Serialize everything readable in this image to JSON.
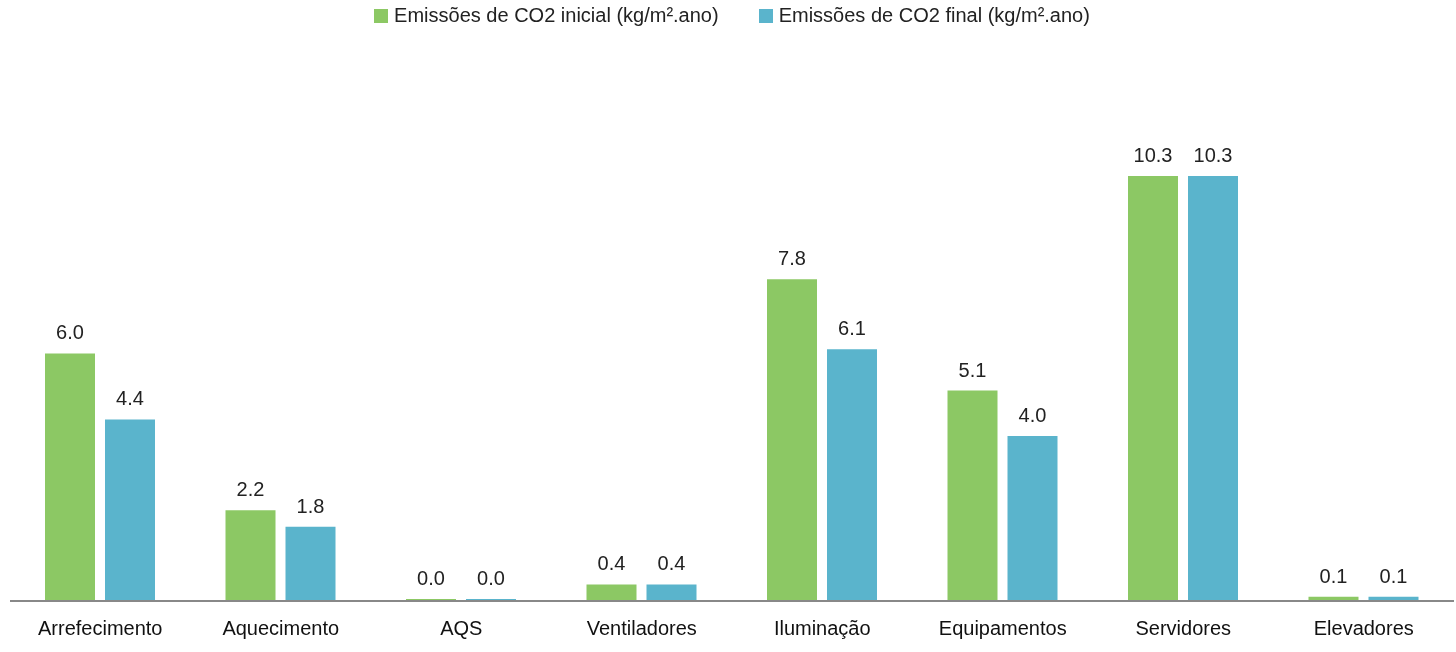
{
  "chart_data": {
    "type": "bar",
    "categories": [
      "Arrefecimento",
      "Aquecimento",
      "AQS",
      "Ventiladores",
      "Iluminação",
      "Equipamentos",
      "Servidores",
      "Elevadores"
    ],
    "series": [
      {
        "name": "Emissões de CO2 inicial (kg/m².ano)",
        "color": "#8cc864",
        "values": [
          6.0,
          2.2,
          0.0,
          0.4,
          7.8,
          5.1,
          10.3,
          0.1
        ],
        "value_labels": [
          "6.0",
          "2.2",
          "0.0",
          "0.4",
          "7.8",
          "5.1",
          "10.3",
          "0.1"
        ]
      },
      {
        "name": "Emissões de CO2 final (kg/m².ano)",
        "color": "#5ab4cc",
        "values": [
          4.4,
          1.8,
          0.0,
          0.4,
          6.1,
          4.0,
          10.3,
          0.1
        ],
        "value_labels": [
          "4.4",
          "1.8",
          "0.0",
          "0.4",
          "6.1",
          "4.0",
          "10.3",
          "0.1"
        ]
      }
    ],
    "legend": "top"
  }
}
